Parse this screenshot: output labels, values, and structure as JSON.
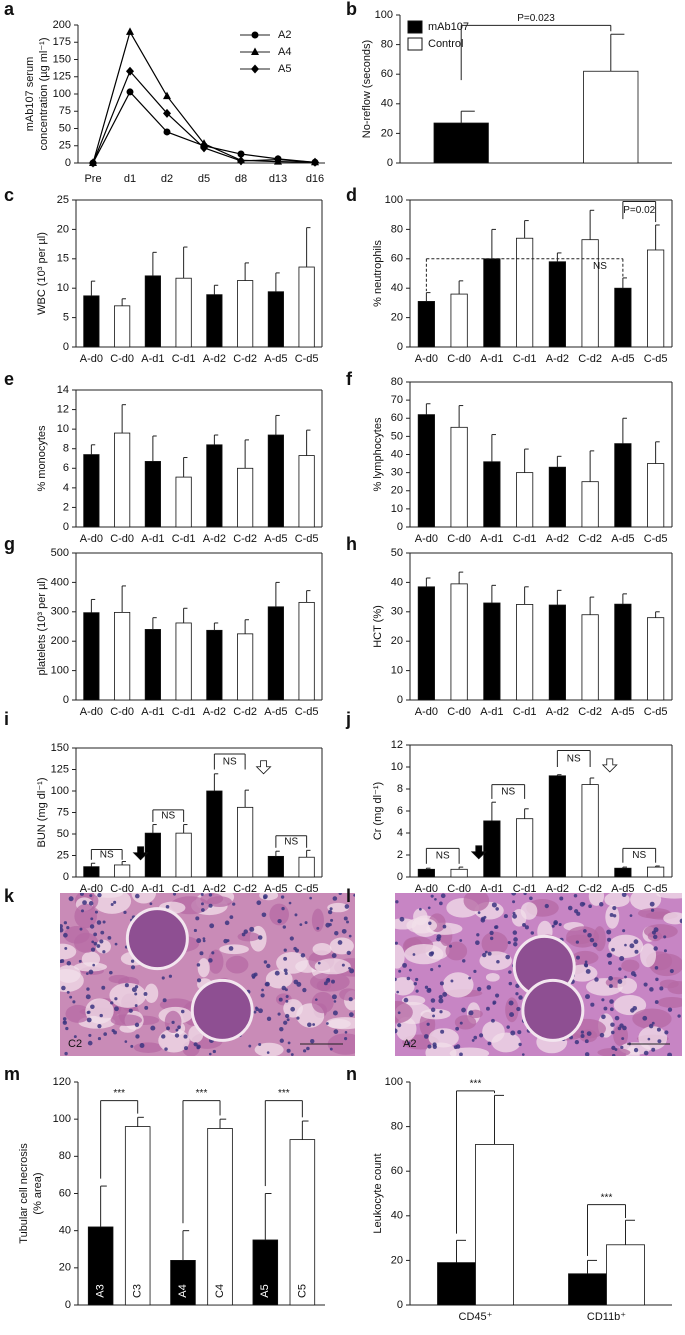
{
  "chart_data": [
    {
      "panel": "a",
      "type": "line",
      "y_label": [
        "mAb107 serum",
        "concentration (µg ml⁻¹)"
      ],
      "categories": [
        "Pre",
        "d1",
        "d2",
        "d5",
        "d8",
        "d13",
        "d16"
      ],
      "series": [
        {
          "name": "A2",
          "color": "#000000",
          "marker": "circle",
          "values": [
            0,
            103,
            45,
            25,
            13,
            6,
            1
          ]
        },
        {
          "name": "A4",
          "color": "#000000",
          "marker": "triangle",
          "values": [
            0,
            190,
            97,
            28,
            4,
            2,
            1
          ]
        },
        {
          "name": "A5",
          "color": "#000000",
          "marker": "diamond",
          "values": [
            0,
            133,
            72,
            22,
            3,
            5,
            1
          ]
        }
      ],
      "ylim": [
        0,
        200
      ],
      "yticks": [
        0,
        25,
        50,
        75,
        100,
        125,
        150,
        175,
        200
      ],
      "legend": "upper right"
    },
    {
      "panel": "b",
      "type": "bar",
      "y_label": "No-reflow (seconds)",
      "series": [
        {
          "name": "mAb107",
          "color": "#000000",
          "values": [
            27
          ],
          "errors": [
            8
          ]
        },
        {
          "name": "Control",
          "color": "#ffffff",
          "values": [
            62
          ],
          "errors": [
            25
          ]
        }
      ],
      "annotations": [
        "P=0.023"
      ],
      "ylim": [
        0,
        100
      ],
      "yticks": [
        0,
        20,
        40,
        60,
        80,
        100
      ],
      "legend": "upper left"
    },
    {
      "panel": "c",
      "type": "bar",
      "y_label": "WBC (10³ per µl)",
      "categories": [
        "A-d0",
        "C-d0",
        "A-d1",
        "C-d1",
        "A-d2",
        "C-d2",
        "A-d5",
        "C-d5"
      ],
      "values": [
        8.7,
        7.0,
        12.1,
        11.7,
        8.9,
        11.3,
        9.4,
        13.6
      ],
      "errors": [
        2.5,
        1.2,
        4.0,
        5.3,
        1.6,
        3.0,
        3.2,
        6.7
      ],
      "colors": [
        "#000000",
        "#ffffff",
        "#000000",
        "#ffffff",
        "#000000",
        "#ffffff",
        "#000000",
        "#ffffff"
      ],
      "ylim": [
        0,
        25
      ],
      "yticks": [
        0,
        5,
        10,
        15,
        20,
        25
      ]
    },
    {
      "panel": "d",
      "type": "bar",
      "y_label": "% neutrophils",
      "categories": [
        "A-d0",
        "C-d0",
        "A-d1",
        "C-d1",
        "A-d2",
        "C-d2",
        "A-d5",
        "C-d5"
      ],
      "values": [
        31,
        36,
        60,
        74,
        58,
        73,
        40,
        66
      ],
      "errors": [
        6,
        9,
        20,
        12,
        6,
        20,
        7,
        17
      ],
      "colors": [
        "#000000",
        "#ffffff",
        "#000000",
        "#ffffff",
        "#000000",
        "#ffffff",
        "#000000",
        "#ffffff"
      ],
      "annotations": [
        "NS",
        "P=0.02"
      ],
      "ylim": [
        0,
        100
      ],
      "yticks": [
        0,
        20,
        40,
        60,
        80,
        100
      ]
    },
    {
      "panel": "e",
      "type": "bar",
      "y_label": "% monocytes",
      "categories": [
        "A-d0",
        "C-d0",
        "A-d1",
        "C-d1",
        "A-d2",
        "C-d2",
        "A-d5",
        "C-d5"
      ],
      "values": [
        7.4,
        9.6,
        6.7,
        5.1,
        8.4,
        6.0,
        9.4,
        7.3
      ],
      "errors": [
        1.0,
        2.9,
        2.6,
        2.0,
        1.0,
        2.9,
        2.0,
        2.6
      ],
      "colors": [
        "#000000",
        "#ffffff",
        "#000000",
        "#ffffff",
        "#000000",
        "#ffffff",
        "#000000",
        "#ffffff"
      ],
      "ylim": [
        0,
        14
      ],
      "yticks": [
        0,
        2,
        4,
        6,
        8,
        10,
        12,
        14
      ]
    },
    {
      "panel": "f",
      "type": "bar",
      "y_label": "% lymphocytes",
      "categories": [
        "A-d0",
        "C-d0",
        "A-d1",
        "C-d1",
        "A-d2",
        "C-d2",
        "A-d5",
        "C-d5"
      ],
      "values": [
        62,
        55,
        36,
        30,
        33,
        25,
        46,
        35
      ],
      "errors": [
        6,
        12,
        15,
        13,
        6,
        17,
        14,
        12
      ],
      "colors": [
        "#000000",
        "#ffffff",
        "#000000",
        "#ffffff",
        "#000000",
        "#ffffff",
        "#000000",
        "#ffffff"
      ],
      "ylim": [
        0,
        80
      ],
      "yticks": [
        0,
        10,
        20,
        30,
        40,
        50,
        60,
        70,
        80
      ]
    },
    {
      "panel": "g",
      "type": "bar",
      "y_label": "platelets (10³ per µl)",
      "categories": [
        "A-d0",
        "C-d0",
        "A-d1",
        "C-d1",
        "A-d2",
        "C-d2",
        "A-d5",
        "C-d5"
      ],
      "values": [
        297,
        298,
        240,
        262,
        237,
        225,
        317,
        332
      ],
      "errors": [
        45,
        90,
        40,
        50,
        25,
        48,
        83,
        40
      ],
      "colors": [
        "#000000",
        "#ffffff",
        "#000000",
        "#ffffff",
        "#000000",
        "#ffffff",
        "#000000",
        "#ffffff"
      ],
      "ylim": [
        0,
        500
      ],
      "yticks": [
        0,
        100,
        200,
        300,
        400,
        500
      ]
    },
    {
      "panel": "h",
      "type": "bar",
      "y_label": "HCT (%)",
      "categories": [
        "A-d0",
        "C-d0",
        "A-d1",
        "C-d1",
        "A-d2",
        "C-d2",
        "A-d5",
        "C-d5"
      ],
      "values": [
        38.5,
        39.5,
        33,
        32.5,
        32.3,
        29,
        32.6,
        28
      ],
      "errors": [
        3,
        4,
        6,
        6,
        5,
        6,
        3.5,
        2
      ],
      "colors": [
        "#000000",
        "#ffffff",
        "#000000",
        "#ffffff",
        "#000000",
        "#ffffff",
        "#000000",
        "#ffffff"
      ],
      "ylim": [
        0,
        50
      ],
      "yticks": [
        0,
        10,
        20,
        30,
        40,
        50
      ]
    },
    {
      "panel": "i",
      "type": "bar",
      "y_label": "BUN (mg dl⁻¹)",
      "categories": [
        "A-d0",
        "C-d0",
        "A-d1",
        "C-d1",
        "A-d2",
        "C-d2",
        "A-d5",
        "C-d5"
      ],
      "values": [
        12,
        14,
        51,
        51,
        100,
        81,
        24,
        23
      ],
      "errors": [
        4,
        4,
        10,
        10,
        20,
        20,
        6,
        8
      ],
      "colors": [
        "#000000",
        "#ffffff",
        "#000000",
        "#ffffff",
        "#000000",
        "#ffffff",
        "#000000",
        "#ffffff"
      ],
      "annotations": [
        "NS",
        "NS",
        "NS",
        "NS"
      ],
      "ylim": [
        0,
        150
      ],
      "yticks": [
        0,
        25,
        50,
        75,
        100,
        125,
        150
      ]
    },
    {
      "panel": "j",
      "type": "bar",
      "y_label": "Cr (mg dl⁻¹)",
      "categories": [
        "A-d0",
        "C-d0",
        "A-d1",
        "C-d1",
        "A-d2",
        "C-d2",
        "A-d5",
        "C-d5"
      ],
      "values": [
        0.7,
        0.7,
        5.1,
        5.3,
        9.2,
        8.4,
        0.8,
        0.9
      ],
      "errors": [
        0.1,
        0.2,
        1.7,
        0.9,
        0.1,
        0.6,
        0.1,
        0.1
      ],
      "colors": [
        "#000000",
        "#ffffff",
        "#000000",
        "#ffffff",
        "#000000",
        "#ffffff",
        "#000000",
        "#ffffff"
      ],
      "annotations": [
        "NS",
        "NS",
        "NS",
        "NS"
      ],
      "ylim": [
        0,
        12
      ],
      "yticks": [
        0,
        2,
        4,
        6,
        8,
        10,
        12
      ]
    },
    {
      "panel": "m",
      "type": "bar",
      "y_label": [
        "Tubular cell necrosis",
        "(% area)"
      ],
      "series": [
        {
          "color": "#000000",
          "values": [
            42,
            24,
            35
          ],
          "errors": [
            22,
            16,
            25
          ],
          "bar_labels": [
            "A3",
            "A4",
            "A5"
          ]
        },
        {
          "color": "#ffffff",
          "values": [
            96,
            95,
            89
          ],
          "errors": [
            5,
            5,
            10
          ],
          "bar_labels": [
            "C3",
            "C4",
            "C5"
          ]
        }
      ],
      "annotations": [
        "***",
        "***",
        "***"
      ],
      "ylim": [
        0,
        120
      ],
      "yticks": [
        0,
        20,
        40,
        60,
        80,
        100,
        120
      ]
    },
    {
      "panel": "n",
      "type": "bar",
      "y_label": "Leukocyte count",
      "categories": [
        "CD45⁺",
        "CD11b⁺"
      ],
      "series": [
        {
          "color": "#000000",
          "values": [
            19,
            14
          ],
          "errors": [
            10,
            6
          ]
        },
        {
          "color": "#ffffff",
          "values": [
            72,
            27
          ],
          "errors": [
            22,
            11
          ]
        }
      ],
      "annotations": [
        "***",
        "***"
      ],
      "ylim": [
        0,
        100
      ],
      "yticks": [
        0,
        20,
        40,
        60,
        80,
        100
      ]
    }
  ],
  "images": [
    {
      "panel": "k",
      "label": "C2"
    },
    {
      "panel": "l",
      "label": "A2"
    }
  ]
}
